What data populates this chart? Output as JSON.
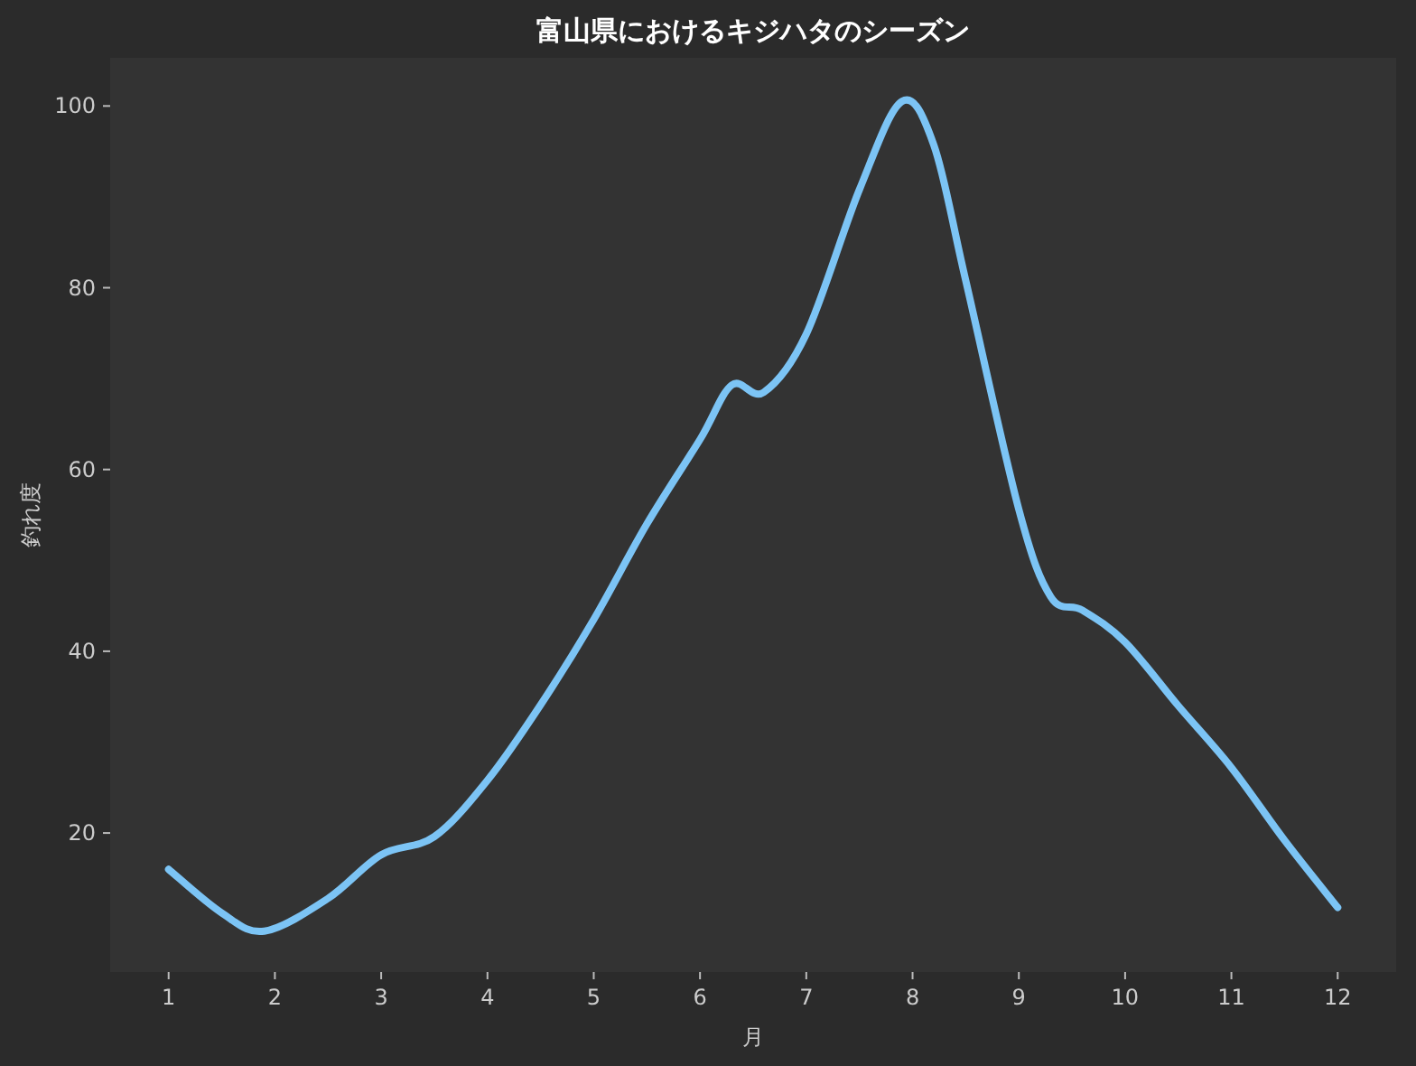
{
  "chart_data": {
    "type": "line",
    "title": "富山県におけるキジハタのシーズン",
    "xlabel": "月",
    "ylabel": "釣れ度",
    "xlim": [
      0.45,
      12.55
    ],
    "ylim": [
      4.7,
      105.3
    ],
    "xticks": [
      1,
      2,
      3,
      4,
      5,
      6,
      7,
      8,
      9,
      10,
      11,
      12
    ],
    "yticks": [
      20,
      40,
      60,
      80,
      100
    ],
    "grid": false,
    "marker": "none",
    "line_style": "solid",
    "series": [
      {
        "color": "#7cc4f5",
        "x": [
          1,
          1.5,
          1.9,
          2.5,
          3,
          3.5,
          4,
          4.5,
          5,
          5.5,
          6,
          6.3,
          6.6,
          7,
          7.5,
          7.9,
          8.2,
          8.5,
          9,
          9.3,
          9.6,
          10,
          10.5,
          11,
          11.5,
          12
        ],
        "values": [
          16,
          11.2,
          9.2,
          12.8,
          17.6,
          19.6,
          25.8,
          34.1,
          43.5,
          54,
          63.3,
          69.3,
          68.5,
          74.9,
          90.8,
          100.5,
          95.7,
          80.8,
          55.6,
          46,
          44.5,
          41,
          34,
          27.2,
          19.2,
          11.8
        ]
      }
    ]
  }
}
